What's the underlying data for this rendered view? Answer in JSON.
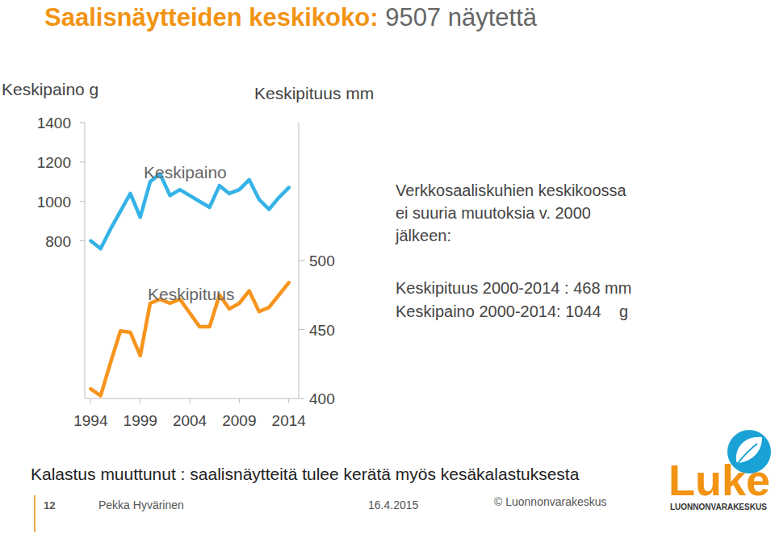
{
  "chart_data": {
    "type": "line",
    "title": "Saalisnäytteiden keskikoko: 9507 näytettä",
    "y_label": "Keskipaino g",
    "y2_label": "Keskipituus mm",
    "x": [
      1994,
      1995,
      1996,
      1997,
      1998,
      1999,
      2000,
      2001,
      2002,
      2003,
      2004,
      2005,
      2006,
      2007,
      2008,
      2009,
      2010,
      2011,
      2012,
      2013,
      2014
    ],
    "xlim": [
      1993.4,
      2015
    ],
    "xticks": [
      1994,
      1999,
      2004,
      2009,
      2014
    ],
    "ylim": [
      0,
      1400
    ],
    "yticks": [
      800,
      1000,
      1200,
      1400
    ],
    "y2lim": [
      400,
      600
    ],
    "y2ticks": [
      400,
      450,
      500
    ],
    "grid": false,
    "series": [
      {
        "name": "Keskipaino",
        "color": "#35b3e6",
        "values": [
          800,
          760,
          860,
          950,
          1040,
          920,
          1100,
          1140,
          1030,
          1060,
          1030,
          1000,
          970,
          1080,
          1040,
          1060,
          1110,
          1010,
          960,
          1020,
          1070
        ]
      },
      {
        "name": "Keskipituus",
        "color": "#f7941d",
        "axis": "y2",
        "values": [
          407,
          402,
          426,
          449,
          448,
          431,
          469,
          472,
          469,
          472,
          462,
          452,
          452,
          475,
          465,
          469,
          478,
          463,
          466,
          475,
          484
        ]
      }
    ],
    "annotations": [
      "Verkkosaaliskuhien keskikoossa",
      "ei suuria muutoksia v. 2000",
      "jälkeen:",
      "Keskipituus 2000-2014 : 468 mm",
      "Keskipaino 2000-2014: 1044    g"
    ]
  },
  "slide": {
    "message": "Kalastus muuttunut : saalisnäytteitä tulee kerätä myös kesäkalastuksesta",
    "page_number": "12",
    "author": "Pekka Hyvärinen",
    "date": "16.4.2015",
    "copyright": "© Luonnonvarakeskus",
    "logo_text": "Luke",
    "logo_subtext": "LUONNONVARAKESKUS"
  }
}
